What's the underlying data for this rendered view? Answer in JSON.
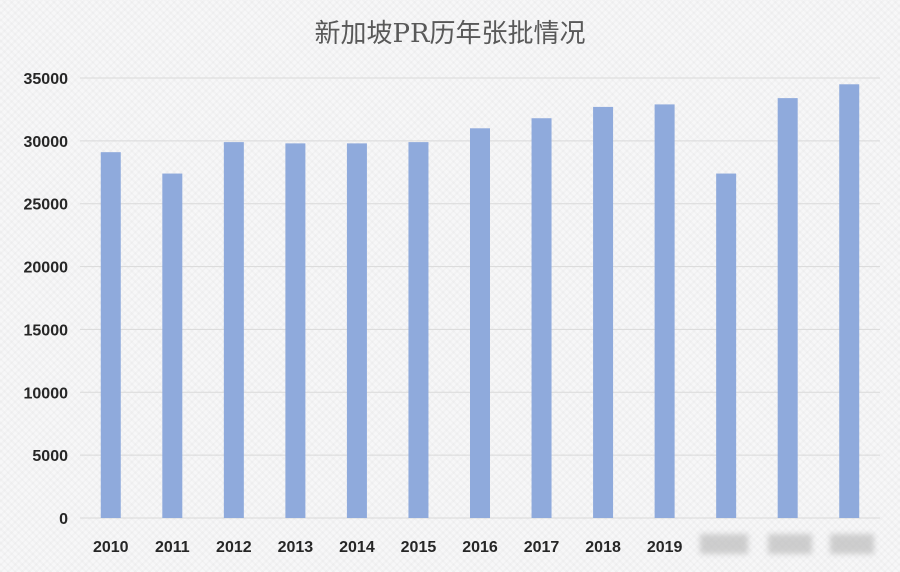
{
  "chart_data": {
    "type": "bar",
    "title": "新加坡PR历年张批情况",
    "xlabel": "",
    "ylabel": "",
    "categories": [
      "2010",
      "2011",
      "2012",
      "2013",
      "2014",
      "2015",
      "2016",
      "2017",
      "2018",
      "2019",
      "",
      "",
      ""
    ],
    "values": [
      29100,
      27400,
      29900,
      29800,
      29800,
      29900,
      31000,
      31800,
      32700,
      32900,
      27400,
      33400,
      34500
    ],
    "ylim": [
      0,
      35000
    ],
    "yticks": [
      0,
      5000,
      10000,
      15000,
      20000,
      25000,
      30000,
      35000
    ],
    "grid": true,
    "legend": "none",
    "bar_color": "#8faadc"
  }
}
